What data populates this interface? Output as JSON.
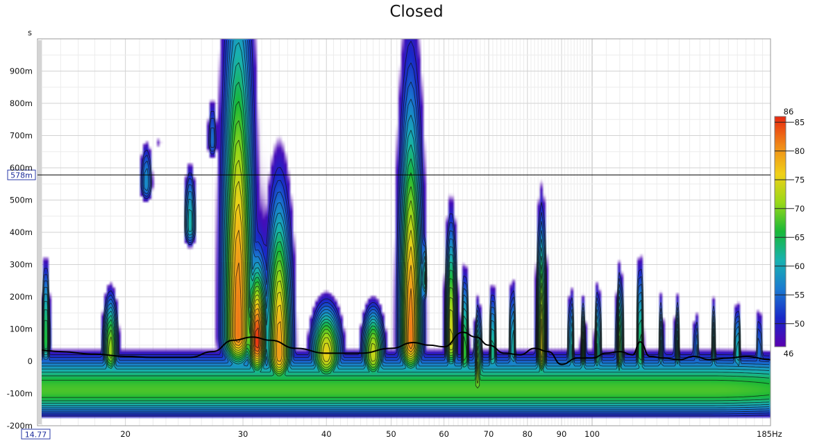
{
  "chart_data": {
    "type": "heatmap",
    "title": "Closed",
    "xlabel": "Hz",
    "ylabel": "s",
    "x_scale": "log",
    "xlim": [
      14.77,
      185
    ],
    "ylim": [
      -0.2,
      1.0
    ],
    "x_ticks": [
      {
        "value": 20,
        "label": "20"
      },
      {
        "value": 30,
        "label": "30"
      },
      {
        "value": 40,
        "label": "40"
      },
      {
        "value": 50,
        "label": "50"
      },
      {
        "value": 60,
        "label": "60"
      },
      {
        "value": 70,
        "label": "70"
      },
      {
        "value": 80,
        "label": "80"
      },
      {
        "value": 90,
        "label": "90"
      },
      {
        "value": 100,
        "label": "100"
      }
    ],
    "x_start_label": "14.77",
    "x_end_label": "185",
    "y_ticks": [
      {
        "value": 0.9,
        "label": "900m"
      },
      {
        "value": 0.8,
        "label": "800m"
      },
      {
        "value": 0.7,
        "label": "700m"
      },
      {
        "value": 0.6,
        "label": "600m"
      },
      {
        "value": 0.5,
        "label": "500m"
      },
      {
        "value": 0.4,
        "label": "400m"
      },
      {
        "value": 0.3,
        "label": "300m"
      },
      {
        "value": 0.2,
        "label": "200m"
      },
      {
        "value": 0.1,
        "label": "100m"
      },
      {
        "value": 0.0,
        "label": "0"
      },
      {
        "value": -0.1,
        "label": "-100m"
      },
      {
        "value": -0.2,
        "label": "-200m"
      }
    ],
    "cursor": {
      "value": 0.578,
      "label": "578m"
    },
    "colorbar": {
      "min": 46,
      "max": 86,
      "min_label": "46",
      "max_label": "86",
      "ticks": [
        {
          "value": 85,
          "label": "85"
        },
        {
          "value": 80,
          "label": "80"
        },
        {
          "value": 75,
          "label": "75"
        },
        {
          "value": 70,
          "label": "70"
        },
        {
          "value": 65,
          "label": "65"
        },
        {
          "value": 60,
          "label": "60"
        },
        {
          "value": 55,
          "label": "55"
        },
        {
          "value": 50,
          "label": "50"
        }
      ],
      "colors": [
        "#5a00b0",
        "#1828c8",
        "#1a7ad0",
        "#18b2b0",
        "#18b838",
        "#98d818",
        "#f0d018",
        "#f08818",
        "#e82810"
      ]
    },
    "peaks": [
      {
        "freq": 15.2,
        "time": 0.06,
        "level": 68,
        "reach": 0.22,
        "width": 0.06
      },
      {
        "freq": 19.0,
        "time": 0.03,
        "level": 72,
        "reach": 0.15,
        "width": 0.1
      },
      {
        "freq": 21.5,
        "time": 0.55,
        "level": 58,
        "reach": 0.16,
        "width": 0.12
      },
      {
        "freq": 22.5,
        "time": 0.68,
        "level": 50,
        "reach": 0.04,
        "width": 0.05
      },
      {
        "freq": 25.0,
        "time": 0.42,
        "level": 62,
        "reach": 0.2,
        "width": 0.1
      },
      {
        "freq": 27.0,
        "time": 0.68,
        "level": 56,
        "reach": 0.18,
        "width": 0.1
      },
      {
        "freq": 29.5,
        "time": 0.08,
        "level": 82,
        "reach": 0.72,
        "width": 0.16
      },
      {
        "freq": 31.5,
        "time": 0.06,
        "level": 86,
        "reach": 0.16,
        "width": 0.1
      },
      {
        "freq": 34.0,
        "time": 0.02,
        "level": 80,
        "reach": 0.35,
        "width": 0.14
      },
      {
        "freq": 40.0,
        "time": 0.02,
        "level": 76,
        "reach": 0.12,
        "width": 0.18
      },
      {
        "freq": 47.0,
        "time": 0.02,
        "level": 74,
        "reach": 0.12,
        "width": 0.14
      },
      {
        "freq": 53.5,
        "time": 0.06,
        "level": 82,
        "reach": 0.52,
        "width": 0.12
      },
      {
        "freq": 56.0,
        "time": 0.25,
        "level": 64,
        "reach": 0.15,
        "width": 0.05
      },
      {
        "freq": 61.5,
        "time": 0.06,
        "level": 76,
        "reach": 0.28,
        "width": 0.07
      },
      {
        "freq": 64.5,
        "time": 0.02,
        "level": 70,
        "reach": 0.22,
        "width": 0.05
      },
      {
        "freq": 67.5,
        "time": -0.05,
        "level": 72,
        "reach": 0.18,
        "width": 0.05
      },
      {
        "freq": 71.0,
        "time": 0.02,
        "level": 66,
        "reach": 0.2,
        "width": 0.05
      },
      {
        "freq": 76.0,
        "time": 0.03,
        "level": 64,
        "reach": 0.22,
        "width": 0.05
      },
      {
        "freq": 84.0,
        "time": 0.03,
        "level": 76,
        "reach": 0.32,
        "width": 0.06
      },
      {
        "freq": 93.0,
        "time": 0.02,
        "level": 64,
        "reach": 0.2,
        "width": 0.05
      },
      {
        "freq": 97.0,
        "time": 0.02,
        "level": 66,
        "reach": 0.16,
        "width": 0.04
      },
      {
        "freq": 102.0,
        "time": 0.02,
        "level": 66,
        "reach": 0.2,
        "width": 0.05
      },
      {
        "freq": 110.0,
        "time": 0.02,
        "level": 70,
        "reach": 0.22,
        "width": 0.05
      },
      {
        "freq": 118.0,
        "time": 0.02,
        "level": 68,
        "reach": 0.26,
        "width": 0.05
      },
      {
        "freq": 127.0,
        "time": 0.02,
        "level": 62,
        "reach": 0.2,
        "width": 0.04
      },
      {
        "freq": 134.0,
        "time": 0.02,
        "level": 64,
        "reach": 0.18,
        "width": 0.04
      },
      {
        "freq": 143.0,
        "time": 0.02,
        "level": 60,
        "reach": 0.16,
        "width": 0.04
      },
      {
        "freq": 152.0,
        "time": 0.02,
        "level": 62,
        "reach": 0.18,
        "width": 0.04
      },
      {
        "freq": 165.0,
        "time": 0.02,
        "level": 64,
        "reach": 0.16,
        "width": 0.05
      },
      {
        "freq": 178.0,
        "time": 0.02,
        "level": 60,
        "reach": 0.18,
        "width": 0.04
      }
    ],
    "baseline": {
      "level": 68,
      "time": -0.09,
      "reach": 0.09
    },
    "contour_levels": [
      50,
      52,
      54,
      56,
      58,
      60,
      62,
      64,
      66,
      68,
      70,
      72,
      74,
      76,
      78,
      80,
      82,
      84
    ],
    "peak_time_curve": {
      "freq": [
        14.77,
        16,
        18,
        20,
        22,
        25,
        27,
        29,
        31,
        33,
        36,
        40,
        45,
        50,
        54,
        57,
        60,
        64,
        67,
        70,
        74,
        78,
        82,
        86,
        90,
        95,
        100,
        105,
        110,
        115,
        118,
        122,
        128,
        135,
        142,
        150,
        160,
        170,
        185
      ],
      "time": [
        0.035,
        0.03,
        0.022,
        0.015,
        0.012,
        0.012,
        0.03,
        0.065,
        0.075,
        0.065,
        0.04,
        0.025,
        0.025,
        0.04,
        0.058,
        0.05,
        0.045,
        0.09,
        0.075,
        0.05,
        0.025,
        0.02,
        0.04,
        0.03,
        -0.01,
        0.01,
        0.01,
        0.025,
        0.03,
        0.02,
        0.06,
        0.015,
        0.01,
        0.005,
        0.015,
        0.005,
        0.01,
        0.015,
        0.005
      ]
    }
  }
}
